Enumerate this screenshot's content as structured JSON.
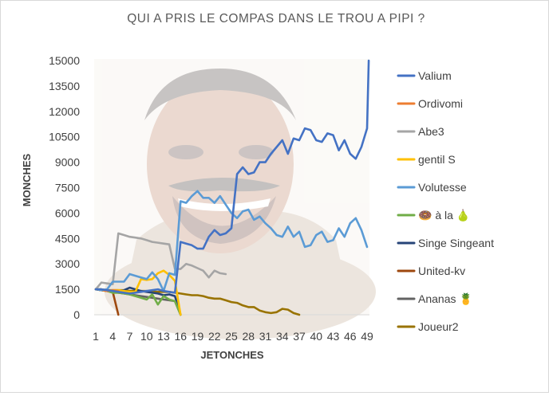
{
  "chart_data": {
    "type": "line",
    "title": "QUI A PRIS LE COMPAS DANS LE TROU A PIPI ?",
    "xlabel": "JETONCHES",
    "ylabel": "MONCHES",
    "ylim": [
      0,
      15000
    ],
    "xlim": [
      1,
      49
    ],
    "y_ticks": [
      0,
      1500,
      3000,
      4500,
      6000,
      7500,
      9000,
      10500,
      12000,
      13500,
      15000
    ],
    "x_ticks": [
      1,
      4,
      7,
      10,
      13,
      16,
      19,
      22,
      25,
      28,
      31,
      34,
      37,
      40,
      43,
      46,
      49
    ],
    "grid": false,
    "legend_position": "right",
    "series": [
      {
        "name": "Valium",
        "color": "#4472c4",
        "x": [
          1,
          2,
          3,
          4,
          5,
          6,
          7,
          8,
          9,
          10,
          11,
          12,
          13,
          14,
          15,
          16,
          17,
          18,
          19,
          20,
          21,
          22,
          23,
          24,
          25,
          26,
          27,
          28,
          29,
          30,
          31,
          32,
          33,
          34,
          35,
          36,
          37,
          38,
          39,
          40,
          41,
          42,
          43,
          44,
          45,
          46,
          47,
          48,
          49
        ],
        "values": [
          1500,
          1500,
          1450,
          1400,
          1350,
          1300,
          1250,
          1300,
          1350,
          1400,
          1450,
          1500,
          1400,
          1350,
          1300,
          4300,
          4200,
          4100,
          3900,
          3900,
          4600,
          5000,
          4700,
          4800,
          5100,
          8300,
          8700,
          8300,
          8400,
          9000,
          9000,
          9500,
          9900,
          10300,
          9500,
          10400,
          10300,
          11000,
          10900,
          10300,
          10200,
          10700,
          10600,
          9700,
          10300,
          9500,
          9200,
          9900,
          11000
        ],
        "extra_points": [
          [
            49.3,
            15000
          ]
        ]
      },
      {
        "name": "Ordivomi",
        "color": "#ed7d31",
        "x": [
          1,
          2,
          3,
          4,
          5
        ],
        "values": [
          1500,
          1450,
          1400,
          1450,
          1400
        ]
      },
      {
        "name": "Abe3",
        "color": "#a5a5a5",
        "x": [
          1,
          2,
          3,
          4,
          5,
          6,
          7,
          8,
          9,
          10,
          11,
          12,
          13,
          14,
          15,
          16,
          17,
          18,
          19,
          20,
          21,
          22,
          23,
          24
        ],
        "values": [
          1500,
          1900,
          1850,
          1800,
          4800,
          4700,
          4600,
          4550,
          4500,
          4400,
          4300,
          4250,
          4200,
          4150,
          2700,
          2700,
          3000,
          2900,
          2750,
          2600,
          2200,
          2600,
          2450,
          2400
        ]
      },
      {
        "name": "gentil S",
        "color": "#ffc000",
        "x": [
          1,
          2,
          3,
          4,
          5,
          6,
          7,
          8,
          9,
          10,
          11,
          12,
          13,
          14,
          15,
          16
        ],
        "values": [
          1500,
          1450,
          1400,
          1450,
          1450,
          1400,
          1350,
          1350,
          2100,
          2050,
          2100,
          2450,
          2600,
          2350,
          2000,
          0
        ]
      },
      {
        "name": "Volutesse",
        "color": "#5b9bd5",
        "x": [
          1,
          2,
          3,
          4,
          5,
          6,
          7,
          8,
          9,
          10,
          11,
          12,
          13,
          14,
          15,
          16,
          17,
          18,
          19,
          20,
          21,
          22,
          23,
          24,
          25,
          26,
          27,
          28,
          29,
          30,
          31,
          32,
          33,
          34,
          35,
          36,
          37,
          38,
          39,
          40,
          41,
          42,
          43,
          44,
          45,
          46,
          47,
          48,
          49
        ],
        "values": [
          1500,
          1450,
          1500,
          1950,
          1950,
          1950,
          2400,
          2300,
          2200,
          2100,
          2500,
          2100,
          1400,
          2450,
          2350,
          6700,
          6600,
          7000,
          7300,
          6900,
          6900,
          6600,
          7000,
          6500,
          6000,
          5700,
          6100,
          6200,
          5600,
          5800,
          5400,
          5100,
          4700,
          4600,
          5200,
          4600,
          4900,
          4000,
          4100,
          4700,
          4900,
          4300,
          4400,
          5100,
          4600,
          5400,
          5700,
          5000,
          4000
        ]
      },
      {
        "name": "🍩 à la 🍐",
        "color": "#70ad47",
        "x": [
          1,
          2,
          3,
          4,
          5,
          6,
          7,
          8,
          9,
          10,
          11,
          12,
          13,
          14,
          15,
          16
        ],
        "values": [
          1500,
          1450,
          1400,
          1300,
          1300,
          1250,
          1200,
          1100,
          1000,
          900,
          1200,
          600,
          1100,
          900,
          800,
          0
        ]
      },
      {
        "name": "Singe Singeant",
        "color": "#264478",
        "x": [
          1,
          2,
          3,
          4,
          5,
          6,
          7,
          8,
          9,
          10,
          11,
          12,
          13,
          14,
          15,
          16
        ],
        "values": [
          1500,
          1450,
          1400,
          1400,
          1400,
          1450,
          1600,
          1500,
          1400,
          1350,
          1300,
          1250,
          1150,
          1200,
          1100,
          0
        ]
      },
      {
        "name": "United-kv",
        "color": "#9e480e",
        "x": [
          1,
          2,
          3,
          4,
          5
        ],
        "values": [
          1500,
          1450,
          1400,
          1350,
          0
        ]
      },
      {
        "name": "Ananas 🍍",
        "color": "#636363",
        "x": [
          1,
          2,
          3,
          4,
          5,
          6,
          7,
          8,
          9,
          10,
          11,
          12,
          13,
          14,
          15,
          16
        ],
        "values": [
          1500,
          1450,
          1400,
          1350,
          1300,
          1250,
          1200,
          1150,
          1100,
          1050,
          1000,
          950,
          900,
          850,
          800,
          0
        ]
      },
      {
        "name": "Joueur2",
        "color": "#997300",
        "x": [
          1,
          2,
          3,
          4,
          5,
          6,
          7,
          8,
          9,
          10,
          11,
          12,
          13,
          14,
          15,
          16,
          17,
          18,
          19,
          20,
          21,
          22,
          23,
          24,
          25,
          26,
          27,
          28,
          29,
          30,
          31,
          32,
          33,
          34,
          35,
          36,
          37
        ],
        "values": [
          1500,
          1500,
          1450,
          1450,
          1450,
          1450,
          1400,
          1400,
          1400,
          1400,
          1350,
          1350,
          1350,
          1350,
          1300,
          1250,
          1200,
          1150,
          1150,
          1100,
          1000,
          950,
          950,
          850,
          750,
          700,
          550,
          450,
          450,
          250,
          150,
          100,
          150,
          350,
          300,
          100,
          0
        ]
      }
    ]
  }
}
